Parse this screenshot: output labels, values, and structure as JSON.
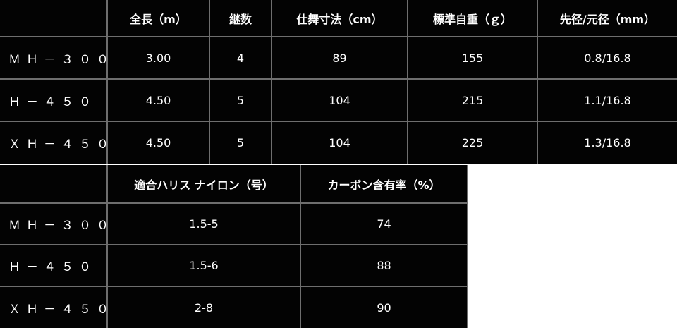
{
  "spec_table": {
    "headers": [
      "",
      "全長（m）",
      "継数",
      "仕舞寸法（cm）",
      "標準自重（ｇ）",
      "先径/元径（mm）"
    ],
    "rows": [
      [
        "ＭＨ－３００",
        "3.00",
        "4",
        "89",
        "155",
        "0.8/16.8"
      ],
      [
        "Ｈ－４５０",
        "4.50",
        "5",
        "104",
        "215",
        "1.1/16.8"
      ],
      [
        "ＸＨ－４５０",
        "4.50",
        "5",
        "104",
        "225",
        "1.3/16.8"
      ]
    ]
  },
  "line_table": {
    "headers": [
      "",
      "適合ハリス ナイロン（号）",
      "カーボン含有率（%）"
    ],
    "rows": [
      [
        "ＭＨ－３００",
        "1.5-5",
        "74"
      ],
      [
        "Ｈ－４５０",
        "1.5-6",
        "88"
      ],
      [
        "ＸＨ－４５０",
        "2-8",
        "90"
      ]
    ]
  }
}
